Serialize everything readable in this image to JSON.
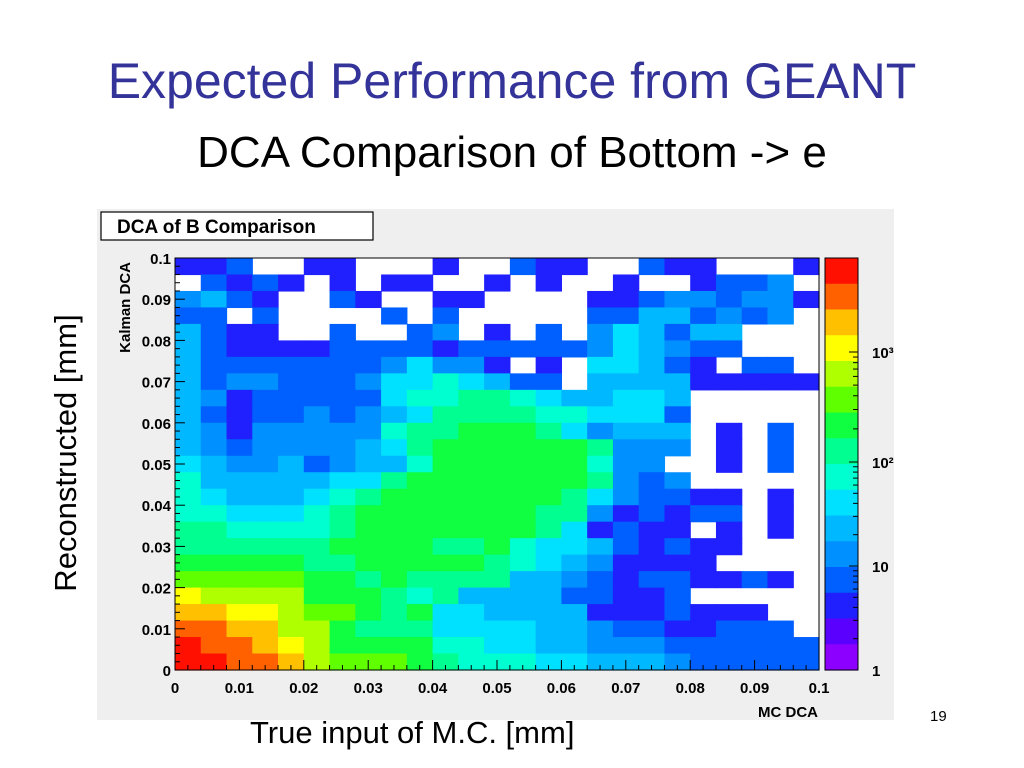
{
  "slide": {
    "title": "Expected Performance from GEANT",
    "subtitle": "DCA Comparison of Bottom -> e",
    "ylabel": "Reconstructed [mm]",
    "xlabel": "True input of M.C. [mm]",
    "page_number": "19"
  },
  "chart_data": {
    "type": "heatmap",
    "title": "DCA of B Comparison",
    "xlabel": "MC DCA",
    "ylabel": "Kalman DCA",
    "xlim": [
      0,
      0.1
    ],
    "ylim": [
      0,
      0.1
    ],
    "grid": false,
    "log_z": true,
    "x_ticks": [
      "0",
      "0.01",
      "0.02",
      "0.03",
      "0.04",
      "0.05",
      "0.06",
      "0.07",
      "0.08",
      "0.09",
      "0.1"
    ],
    "y_ticks": [
      "0",
      "0.01",
      "0.02",
      "0.03",
      "0.04",
      "0.05",
      "0.06",
      "0.07",
      "0.08",
      "0.09",
      "0.1"
    ],
    "colorbar_ticks": [
      "1",
      "10",
      "10²",
      "10³"
    ],
    "bins_x": 25,
    "bins_y": 25,
    "cells_row_order": "top-to-bottom",
    "cells": [
      "2230022000200322003220002",
      "0323202022002020020023340",
      "4532003200220000223443442",
      "3303000030300000335534340",
      "5322003003402030465355000",
      "5322223333233333465433000",
      "5333333346442020665320330",
      "5344333466765330555522222",
      "5423333367788765566500000",
      "5323343456888877666300000",
      "5424444478899986455502030",
      "5434444568999999844402030",
      "6544534557999999744002030",
      "7555556689999999843400000",
      "7655567899999998643322020",
      "7766678999999988423233020",
      "8877778999999986232202020",
      "8888889999889766532322000",
      "9999988999998765422220000",
      "AAAAA99898888554323322320",
      "CBBBB99987855553322300000",
      "DDCCBAA989665555222322200",
      "EEDDBB9888666655433223330",
      "FEEDCB9999776655444333333",
      "FFEEDBAAA9877766555433333"
    ],
    "cell_value_scale": "0 = empty bin; 1-15 = increasing log10 count (1 to ~10^3.5)",
    "colors": {
      "frame_background": "#efefef",
      "colormap": [
        "#8b00ff",
        "#5a00ff",
        "#2020ff",
        "#0060ff",
        "#0090ff",
        "#00b8ff",
        "#00e0ff",
        "#00ffd0",
        "#00ff90",
        "#10ff40",
        "#60ff00",
        "#b0ff00",
        "#ffff00",
        "#ffc000",
        "#ff6000",
        "#ff1000"
      ]
    }
  }
}
